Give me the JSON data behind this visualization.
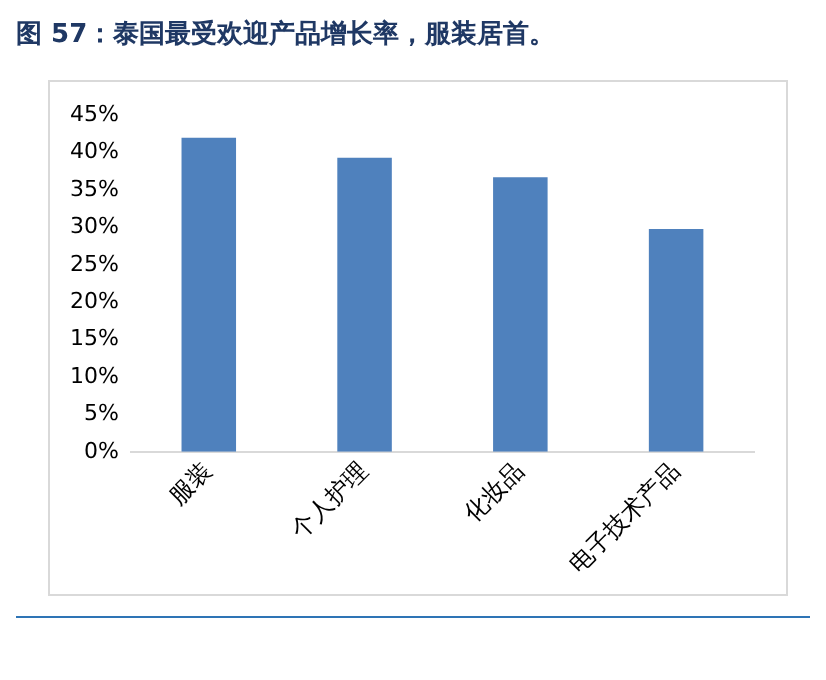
{
  "chart_data": {
    "type": "bar",
    "title": "图 57：泰国最受欢迎产品增长率，服装居首。",
    "categories": [
      "服装",
      "个人护理",
      "化妆品",
      "电子技术产品"
    ],
    "values": [
      42,
      39.3,
      36.7,
      29.8
    ],
    "color": "#4f81bd",
    "ylim": [
      0,
      45
    ],
    "yticks": [
      {
        "value": 0,
        "label": "0%"
      },
      {
        "value": 5,
        "label": "5%"
      },
      {
        "value": 10,
        "label": "10%"
      },
      {
        "value": 15,
        "label": "15%"
      },
      {
        "value": 20,
        "label": "20%"
      },
      {
        "value": 25,
        "label": "25%"
      },
      {
        "value": 30,
        "label": "30%"
      },
      {
        "value": 35,
        "label": "35%"
      },
      {
        "value": 40,
        "label": "40%"
      },
      {
        "value": 45,
        "label": "45%"
      }
    ],
    "grid": false,
    "legend": false
  }
}
